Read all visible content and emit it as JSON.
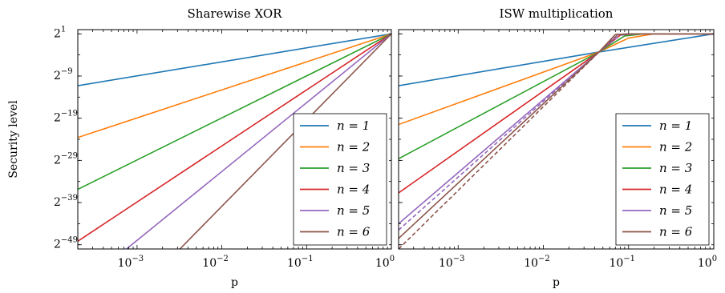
{
  "chart_data": [
    {
      "type": "line",
      "title": "Sharewise XOR",
      "xlabel": "p",
      "ylabel": "Security level",
      "x_scale": "log10",
      "y_scale": "log2",
      "xlim": [
        0.0002,
        1
      ],
      "ylim_log2": [
        -50,
        2
      ],
      "x_ticks": [
        {
          "base": "10",
          "exp": "−3",
          "value": 0.001
        },
        {
          "base": "10",
          "exp": "−2",
          "value": 0.01
        },
        {
          "base": "10",
          "exp": "−1",
          "value": 0.1
        },
        {
          "base": "10",
          "exp": "0",
          "value": 1
        }
      ],
      "y_ticks": [
        {
          "base": "2",
          "exp": "1",
          "value": 1
        },
        {
          "base": "2",
          "exp": "−9",
          "value": -9
        },
        {
          "base": "2",
          "exp": "−19",
          "value": -19
        },
        {
          "base": "2",
          "exp": "−29",
          "value": -29
        },
        {
          "base": "2",
          "exp": "−39",
          "value": -39
        },
        {
          "base": "2",
          "exp": "−49",
          "value": -49
        }
      ],
      "legend_position": "bottom-right",
      "series": [
        {
          "name": "n = 1",
          "color": "#1f77b4",
          "points": [
            [
              0.0002,
              -11.29
            ],
            [
              1,
              1
            ]
          ]
        },
        {
          "name": "n = 2",
          "color": "#ff7f0e",
          "points": [
            [
              0.0002,
              -23.58
            ],
            [
              1,
              1
            ]
          ]
        },
        {
          "name": "n = 3",
          "color": "#2ca02c",
          "points": [
            [
              0.0002,
              -35.87
            ],
            [
              1,
              1
            ]
          ]
        },
        {
          "name": "n = 4",
          "color": "#d62728",
          "points": [
            [
              0.0002,
              -48.16
            ],
            [
              1,
              1
            ]
          ]
        },
        {
          "name": "n = 5",
          "color": "#9467bd",
          "points": [
            [
              0.00075,
              -50
            ],
            [
              1,
              1
            ]
          ]
        },
        {
          "name": "n = 6",
          "color": "#8c564b",
          "points": [
            [
              0.0032,
              -50
            ],
            [
              1,
              1
            ]
          ]
        }
      ]
    },
    {
      "type": "line",
      "title": "ISW multiplication",
      "xlabel": "p",
      "x_scale": "log10",
      "y_scale": "log2",
      "xlim": [
        0.0002,
        1
      ],
      "ylim_log2": [
        -50,
        2
      ],
      "x_ticks": [
        {
          "base": "10",
          "exp": "−3",
          "value": 0.001
        },
        {
          "base": "10",
          "exp": "−2",
          "value": 0.01
        },
        {
          "base": "10",
          "exp": "−1",
          "value": 0.1
        },
        {
          "base": "10",
          "exp": "0",
          "value": 1
        }
      ],
      "legend_position": "bottom-right",
      "series": [
        {
          "name": "n = 1",
          "color": "#1f77b4",
          "points": [
            [
              0.0002,
              -11.29
            ],
            [
              0.045,
              -3.3
            ],
            [
              1,
              1
            ]
          ]
        },
        {
          "name": "n = 2",
          "color": "#ff7f0e",
          "points": [
            [
              0.0002,
              -20.5
            ],
            [
              0.045,
              -3.3
            ],
            [
              0.1,
              0
            ],
            [
              0.2,
              1
            ],
            [
              1,
              1
            ]
          ]
        },
        {
          "name": "n = 3",
          "color": "#2ca02c",
          "points": [
            [
              0.0002,
              -28.6
            ],
            [
              0.045,
              -3.3
            ],
            [
              0.09,
              0.5
            ],
            [
              0.15,
              1
            ],
            [
              1,
              1
            ]
          ]
        },
        {
          "name": "n = 4",
          "color": "#d62728",
          "points": [
            [
              0.0002,
              -36.7
            ],
            [
              0.045,
              -3.3
            ],
            [
              0.08,
              0.7
            ],
            [
              0.12,
              1
            ],
            [
              1,
              1
            ]
          ]
        },
        {
          "name": "n = 5",
          "color": "#9467bd",
          "points": [
            [
              0.0002,
              -44.0
            ],
            [
              0.045,
              -3.3
            ],
            [
              0.075,
              0.8
            ],
            [
              0.11,
              1
            ],
            [
              1,
              1
            ]
          ]
        },
        {
          "name": "n = 5 (dashed)",
          "color": "#9467bd",
          "dashed": true,
          "points": [
            [
              0.0002,
              -45.5
            ],
            [
              0.045,
              -3.3
            ],
            [
              0.08,
              0.7
            ],
            [
              0.13,
              1
            ]
          ]
        },
        {
          "name": "n = 6",
          "color": "#8c564b",
          "points": [
            [
              0.0002,
              -47.5
            ],
            [
              0.045,
              -3.3
            ],
            [
              0.07,
              0.85
            ],
            [
              0.1,
              1
            ],
            [
              1,
              1
            ]
          ]
        },
        {
          "name": "n = 6 (dashed)",
          "color": "#8c564b",
          "dashed": true,
          "points": [
            [
              0.0002,
              -50
            ],
            [
              0.045,
              -3.3
            ],
            [
              0.075,
              0.8
            ],
            [
              0.12,
              1
            ]
          ]
        }
      ]
    }
  ],
  "legend": {
    "entries": [
      {
        "label": "n = 1",
        "color": "#1f77b4"
      },
      {
        "label": "n = 2",
        "color": "#ff7f0e"
      },
      {
        "label": "n = 3",
        "color": "#2ca02c"
      },
      {
        "label": "n = 4",
        "color": "#d62728"
      },
      {
        "label": "n = 5",
        "color": "#9467bd"
      },
      {
        "label": "n = 6",
        "color": "#8c564b"
      }
    ]
  }
}
